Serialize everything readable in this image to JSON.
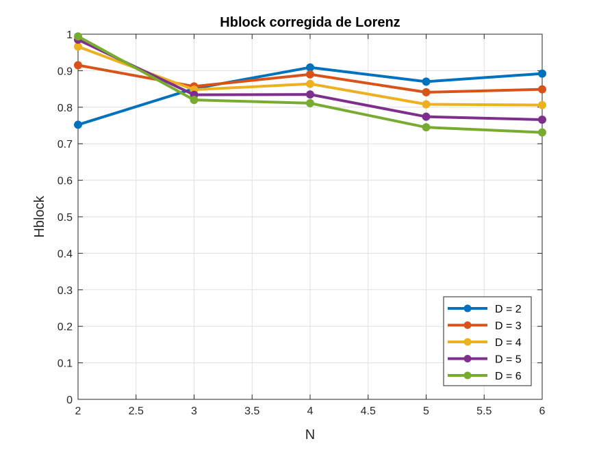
{
  "chart_data": {
    "type": "line",
    "title": "Hblock corregida de Lorenz",
    "xlabel": "N",
    "ylabel": "Hblock",
    "x": [
      2,
      3,
      4,
      5,
      6
    ],
    "xlim": [
      2,
      6
    ],
    "ylim": [
      0,
      1
    ],
    "xticks": [
      2,
      2.5,
      3,
      3.5,
      4,
      4.5,
      5,
      5.5,
      6
    ],
    "xtick_labels": [
      "2",
      "2.5",
      "3",
      "3.5",
      "4",
      "4.5",
      "5",
      "5.5",
      "6"
    ],
    "yticks": [
      0,
      0.1,
      0.2,
      0.3,
      0.4,
      0.5,
      0.6,
      0.7,
      0.8,
      0.9,
      1
    ],
    "ytick_labels": [
      "0",
      "0.1",
      "0.2",
      "0.3",
      "0.4",
      "0.5",
      "0.6",
      "0.7",
      "0.8",
      "0.9",
      "1"
    ],
    "grid": true,
    "legend_position": "bottom-right",
    "series": [
      {
        "name": "D = 2",
        "color": "#0072BD",
        "values": [
          0.752,
          0.851,
          0.909,
          0.87,
          0.892
        ]
      },
      {
        "name": "D = 3",
        "color": "#D95319",
        "values": [
          0.915,
          0.857,
          0.89,
          0.841,
          0.849
        ]
      },
      {
        "name": "D = 4",
        "color": "#EDB120",
        "values": [
          0.966,
          0.848,
          0.864,
          0.808,
          0.806
        ]
      },
      {
        "name": "D = 5",
        "color": "#7E2F8E",
        "values": [
          0.985,
          0.834,
          0.835,
          0.774,
          0.766
        ]
      },
      {
        "name": "D = 6",
        "color": "#77AC30",
        "values": [
          0.994,
          0.82,
          0.811,
          0.745,
          0.731
        ]
      }
    ]
  }
}
